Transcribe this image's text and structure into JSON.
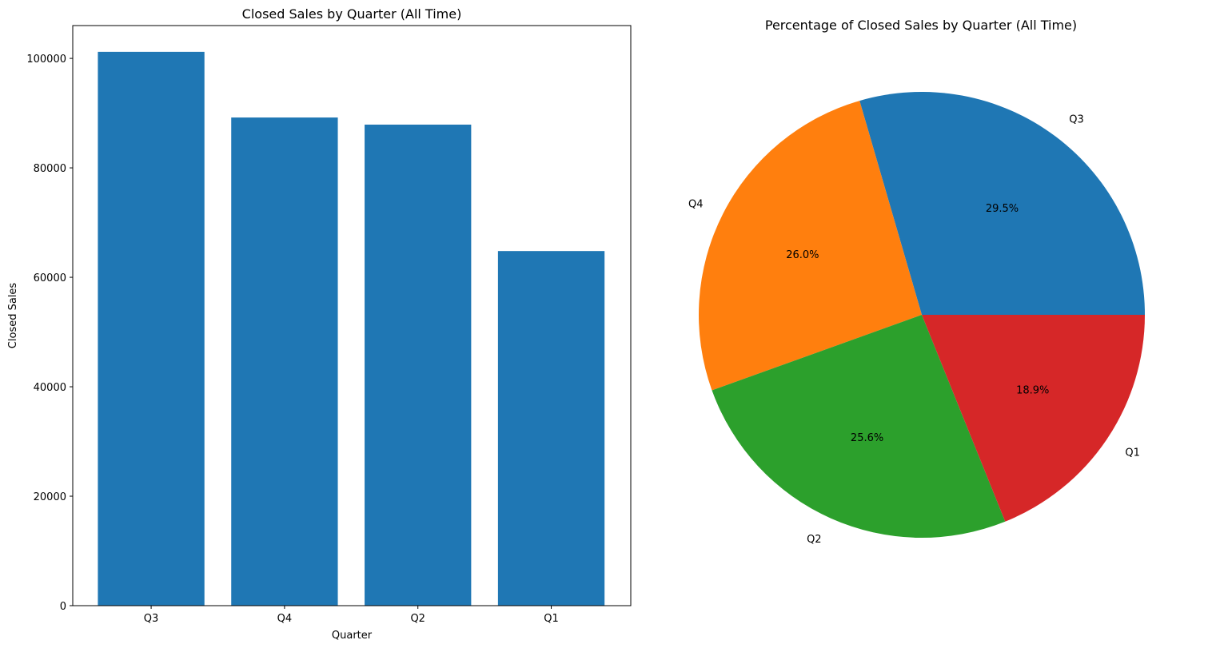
{
  "chart_data": [
    {
      "type": "bar",
      "title": "Closed Sales by Quarter (All Time)",
      "xlabel": "Quarter",
      "ylabel": "Closed Sales",
      "categories": [
        "Q3",
        "Q4",
        "Q2",
        "Q1"
      ],
      "values": [
        101200,
        89200,
        87900,
        64800
      ],
      "ylim": [
        0,
        106000
      ],
      "yticks": [
        0,
        20000,
        40000,
        60000,
        80000,
        100000
      ],
      "color": "#1f77b4",
      "grid": false
    },
    {
      "type": "pie",
      "title": "Percentage of Closed Sales by Quarter (All Time)",
      "labels": [
        "Q3",
        "Q4",
        "Q2",
        "Q1"
      ],
      "percentages": [
        29.5,
        26.0,
        25.6,
        18.9
      ],
      "percent_labels": [
        "29.5%",
        "26.0%",
        "25.6%",
        "18.9%"
      ],
      "colors": [
        "#1f77b4",
        "#ff7f0e",
        "#2ca02c",
        "#d62728"
      ],
      "start_angle_deg": 0,
      "direction": "counterclockwise"
    }
  ]
}
